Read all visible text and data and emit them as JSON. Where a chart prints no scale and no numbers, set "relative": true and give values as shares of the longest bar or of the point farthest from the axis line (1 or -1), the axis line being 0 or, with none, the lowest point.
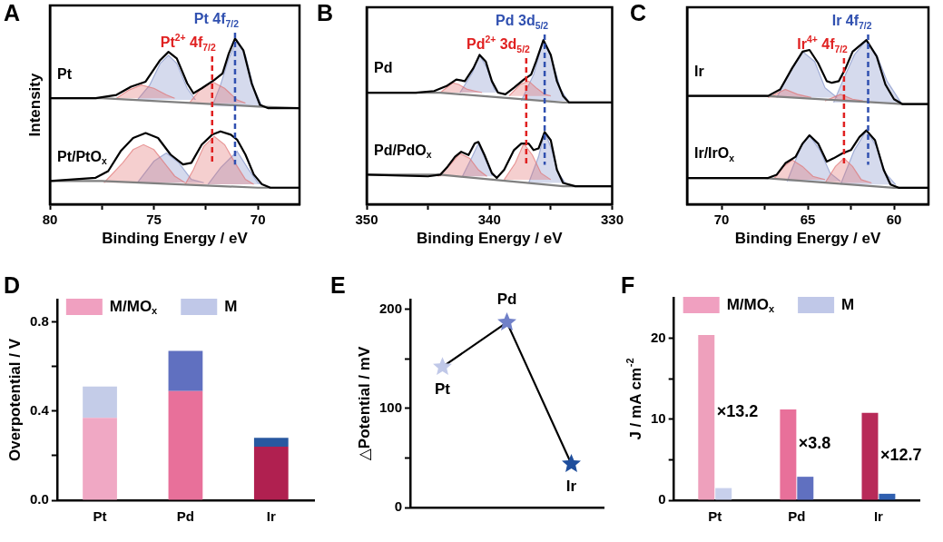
{
  "chart_data": [
    {
      "type": "line",
      "title": "A",
      "xlabel": "Binding Energy / eV",
      "ylabel": "Intensity",
      "relative": true,
      "xlim": [
        80,
        68
      ],
      "xticks": [
        80,
        {
          "value": 77.5,
          "label": null
        },
        75,
        {
          "value": 72.5,
          "label": null
        },
        70
      ],
      "series": [
        {
          "name": "Pt",
          "color": "#000000",
          "x": [
            80,
            77.8,
            76.8,
            76.1,
            75.4,
            74.7,
            74.3,
            73.9,
            73.4,
            73.1,
            72.7,
            72.1,
            71.7,
            71.4,
            71.1,
            70.7,
            70.3,
            69.9,
            69.5,
            68
          ],
          "values": [
            0.64,
            0.64,
            0.66,
            0.71,
            0.74,
            0.87,
            0.92,
            0.88,
            0.73,
            0.67,
            0.7,
            0.75,
            0.79,
            0.91,
            1,
            0.93,
            0.73,
            0.6,
            0.58,
            0.58
          ]
        },
        {
          "name": "Pt/PtO$_{x}$",
          "color": "#000000",
          "x": [
            80,
            77.8,
            77.2,
            76.6,
            76.0,
            75.4,
            74.8,
            74.2,
            73.6,
            73.2,
            72.7,
            72.2,
            71.8,
            71.3,
            71.0,
            70.6,
            70.2,
            69.8,
            69.4,
            68
          ],
          "values": [
            0.14,
            0.16,
            0.2,
            0.32,
            0.4,
            0.43,
            0.4,
            0.3,
            0.24,
            0.25,
            0.36,
            0.42,
            0.44,
            0.42,
            0.39,
            0.3,
            0.18,
            0.12,
            0.1,
            0.1
          ]
        },
        {
          "type": "line",
          "color": "#808080",
          "x": [
            80,
            77.5,
            70,
            68
          ],
          "values": [
            0.64,
            0.64,
            0.59,
            0.58
          ]
        },
        {
          "type": "line",
          "color": "#808080",
          "x": [
            80,
            77.5,
            70,
            68
          ],
          "values": [
            0.14,
            0.14,
            0.1,
            0.1
          ]
        },
        {
          "type": "area",
          "color": "#e07070",
          "x": [
            76.8,
            76.2,
            75.6,
            75.0,
            74.4,
            74.0
          ],
          "values": [
            0.64,
            0.69,
            0.72,
            0.7,
            0.66,
            0.64
          ]
        },
        {
          "type": "area",
          "color": "#e07070",
          "x": [
            73.3,
            72.8,
            72.2,
            71.6,
            71.0,
            70.6
          ],
          "values": [
            0.61,
            0.69,
            0.74,
            0.7,
            0.63,
            0.61
          ]
        },
        {
          "type": "area",
          "color": "#8090c8",
          "x": [
            75.8,
            75.2,
            74.7,
            74.3,
            73.9,
            73.4,
            73.0
          ],
          "values": [
            0.63,
            0.72,
            0.85,
            0.9,
            0.85,
            0.7,
            0.63
          ]
        },
        {
          "type": "area",
          "color": "#8090c8",
          "x": [
            72.2,
            71.8,
            71.4,
            71.0,
            70.6,
            70.2,
            69.8
          ],
          "values": [
            0.59,
            0.72,
            0.88,
            0.99,
            0.9,
            0.7,
            0.59
          ]
        },
        {
          "type": "area",
          "color": "#e07070",
          "x": [
            77.4,
            76.5,
            76.0,
            75.5,
            75.0,
            74.5,
            74.0,
            73.5
          ],
          "values": [
            0.13,
            0.25,
            0.33,
            0.36,
            0.33,
            0.25,
            0.17,
            0.13
          ]
        },
        {
          "type": "area",
          "color": "#e07070",
          "x": [
            73.5,
            73.1,
            72.6,
            72.1,
            71.6,
            71.1,
            70.6,
            70.2
          ],
          "values": [
            0.12,
            0.21,
            0.35,
            0.41,
            0.36,
            0.25,
            0.15,
            0.12
          ]
        },
        {
          "type": "area",
          "color": "#8090c8",
          "x": [
            75.8,
            75.0,
            74.4,
            73.8,
            73.2,
            72.6
          ],
          "values": [
            0.13,
            0.26,
            0.31,
            0.25,
            0.15,
            0.13
          ]
        },
        {
          "type": "area",
          "color": "#8090c8",
          "x": [
            72.4,
            71.8,
            71.0,
            70.5,
            70.0,
            69.8
          ],
          "values": [
            0.12,
            0.22,
            0.32,
            0.22,
            0.13,
            0.12
          ]
        }
      ],
      "ref_lines": [
        {
          "axis": "x",
          "value": 72.2,
          "label": "Pt$^{2+}$ 4f$_{7/2}$",
          "color": "#e02020",
          "line_style": "dashed"
        },
        {
          "axis": "x",
          "value": 71.1,
          "label": "Pt 4f$_{7/2}$",
          "color": "#3050b0",
          "line_style": "dashed"
        }
      ]
    },
    {
      "type": "line",
      "title": "B",
      "xlabel": "Binding Energy / eV",
      "relative": true,
      "xlim": [
        350,
        330
      ],
      "xticks": [
        350,
        {
          "value": 345,
          "label": null
        },
        340,
        {
          "value": 335,
          "label": null
        },
        330
      ],
      "series": [
        {
          "name": "Pd",
          "color": "#000000",
          "x": [
            350,
            346,
            344.5,
            343.5,
            342.7,
            342,
            341.3,
            340.8,
            340.3,
            339.8,
            339.3,
            338.7,
            338,
            337.2,
            336.6,
            336.2,
            335.6,
            335.0,
            334.5,
            334.0,
            333.5,
            330
          ],
          "values": [
            0.68,
            0.68,
            0.69,
            0.72,
            0.76,
            0.75,
            0.83,
            0.91,
            0.87,
            0.75,
            0.68,
            0.67,
            0.71,
            0.76,
            0.79,
            0.87,
            1,
            0.91,
            0.75,
            0.66,
            0.62,
            0.62
          ]
        },
        {
          "name": "Pd/PdO$_{x}$",
          "color": "#000000",
          "x": [
            350,
            345,
            344,
            343.4,
            342.8,
            342.3,
            341.7,
            341.2,
            340.9,
            340.4,
            339.8,
            339.4,
            338.8,
            338.0,
            337.4,
            336.8,
            336.4,
            336.0,
            335.5,
            335.0,
            334.5,
            334.0,
            333.0,
            330
          ],
          "values": [
            0.18,
            0.17,
            0.18,
            0.23,
            0.29,
            0.32,
            0.3,
            0.37,
            0.38,
            0.3,
            0.19,
            0.16,
            0.21,
            0.33,
            0.37,
            0.37,
            0.33,
            0.34,
            0.44,
            0.39,
            0.21,
            0.13,
            0.11,
            0.11
          ]
        },
        {
          "type": "line",
          "color": "#808080",
          "x": [
            350,
            344,
            334,
            330
          ],
          "values": [
            0.68,
            0.68,
            0.62,
            0.62
          ]
        },
        {
          "type": "line",
          "color": "#808080",
          "x": [
            350,
            344,
            334,
            330
          ],
          "values": [
            0.18,
            0.18,
            0.11,
            0.11
          ]
        },
        {
          "type": "area",
          "color": "#e07070",
          "x": [
            344.0,
            343.0,
            342.5,
            341.8,
            341.2,
            340.6
          ],
          "values": [
            0.68,
            0.74,
            0.73,
            0.7,
            0.69,
            0.68
          ]
        },
        {
          "type": "area",
          "color": "#e07070",
          "x": [
            338.4,
            337.5,
            336.8,
            336.2,
            335.5,
            335.0
          ],
          "values": [
            0.66,
            0.73,
            0.75,
            0.71,
            0.67,
            0.66
          ]
        },
        {
          "type": "area",
          "color": "#8090c8",
          "x": [
            342.4,
            341.4,
            340.8,
            340.2,
            339.6,
            339.2
          ],
          "values": [
            0.68,
            0.8,
            0.91,
            0.83,
            0.7,
            0.68
          ]
        },
        {
          "type": "area",
          "color": "#8090c8",
          "x": [
            337.4,
            336.4,
            335.6,
            334.9,
            334.2,
            333.6
          ],
          "values": [
            0.63,
            0.79,
            1,
            0.88,
            0.7,
            0.63
          ]
        },
        {
          "type": "area",
          "color": "#e07070",
          "x": [
            344.2,
            343.2,
            342.4,
            341.6,
            340.9,
            340.2
          ],
          "values": [
            0.17,
            0.24,
            0.31,
            0.28,
            0.21,
            0.17
          ]
        },
        {
          "type": "area",
          "color": "#e07070",
          "x": [
            338.8,
            337.9,
            337.2,
            336.5,
            335.8,
            335.0
          ],
          "values": [
            0.15,
            0.25,
            0.37,
            0.3,
            0.19,
            0.15
          ]
        },
        {
          "type": "area",
          "color": "#8090c8",
          "x": [
            342.2,
            341.4,
            340.9,
            340.3,
            339.8,
            339.4
          ],
          "values": [
            0.17,
            0.29,
            0.37,
            0.27,
            0.18,
            0.17
          ]
        },
        {
          "type": "area",
          "color": "#8090c8",
          "x": [
            336.8,
            336.0,
            335.5,
            335.0,
            334.4,
            333.8
          ],
          "values": [
            0.13,
            0.29,
            0.44,
            0.35,
            0.19,
            0.13
          ]
        }
      ],
      "ref_lines": [
        {
          "axis": "x",
          "value": 337.0,
          "label": "Pd$^{2+}$ 3d$_{5/2}$",
          "color": "#e02020",
          "line_style": "dashed"
        },
        {
          "axis": "x",
          "value": 335.5,
          "label": "Pd 3d$_{5/2}$",
          "color": "#3050b0",
          "line_style": "dashed"
        }
      ]
    },
    {
      "type": "line",
      "title": "C",
      "xlabel": "Binding Energy / eV",
      "relative": true,
      "xlim": [
        72,
        58
      ],
      "xticks": [
        70,
        {
          "value": 67.5,
          "label": null
        },
        65,
        {
          "value": 62.5,
          "label": null
        },
        60
      ],
      "series": [
        {
          "name": "Ir",
          "color": "#000000",
          "x": [
            72,
            67.3,
            66.6,
            65.9,
            65.3,
            64.9,
            64.4,
            63.9,
            63.6,
            63.2,
            62.8,
            62.4,
            61.6,
            61.0,
            60.5,
            60.0,
            59.5,
            58
          ],
          "values": [
            0.66,
            0.66,
            0.7,
            0.83,
            0.93,
            0.94,
            0.86,
            0.75,
            0.74,
            0.75,
            0.83,
            0.93,
            1,
            0.9,
            0.73,
            0.64,
            0.61,
            0.61
          ]
        },
        {
          "name": "Ir/IrO$_{x}$",
          "color": "#000000",
          "x": [
            72,
            67.3,
            66.8,
            66.3,
            65.7,
            65.3,
            64.9,
            64.4,
            63.9,
            63.5,
            63.0,
            62.5,
            62.0,
            61.6,
            61.1,
            60.6,
            60.2,
            59.7,
            58
          ],
          "values": [
            0.16,
            0.16,
            0.18,
            0.25,
            0.29,
            0.37,
            0.42,
            0.37,
            0.26,
            0.28,
            0.31,
            0.33,
            0.41,
            0.45,
            0.39,
            0.21,
            0.12,
            0.1,
            0.1
          ]
        },
        {
          "type": "line",
          "color": "#808080",
          "x": [
            72,
            67.5,
            59.5,
            58
          ],
          "values": [
            0.66,
            0.66,
            0.61,
            0.61
          ]
        },
        {
          "type": "line",
          "color": "#808080",
          "x": [
            72,
            67.5,
            60,
            58
          ],
          "values": [
            0.16,
            0.16,
            0.1,
            0.1
          ]
        },
        {
          "type": "area",
          "color": "#e07070",
          "x": [
            67.3,
            66.3,
            65.6,
            64.8
          ],
          "values": [
            0.65,
            0.7,
            0.67,
            0.65
          ]
        },
        {
          "type": "area",
          "color": "#e07070",
          "x": [
            64.0,
            63.1,
            62.4,
            61.8
          ],
          "values": [
            0.63,
            0.67,
            0.64,
            0.63
          ]
        },
        {
          "type": "area",
          "color": "#8090c8",
          "x": [
            66.8,
            66.0,
            65.3,
            64.6,
            64.0,
            63.3
          ],
          "values": [
            0.65,
            0.81,
            0.93,
            0.87,
            0.71,
            0.65
          ]
        },
        {
          "type": "area",
          "color": "#8090c8",
          "x": [
            63.5,
            62.9,
            62.3,
            61.6,
            61.0,
            60.4,
            59.6
          ],
          "values": [
            0.62,
            0.77,
            0.91,
            1,
            0.91,
            0.75,
            0.62
          ]
        },
        {
          "type": "area",
          "color": "#e07070",
          "x": [
            67.0,
            66.4,
            65.9,
            65.3,
            64.7,
            64.0
          ],
          "values": [
            0.15,
            0.23,
            0.27,
            0.23,
            0.17,
            0.15
          ]
        },
        {
          "type": "area",
          "color": "#e07070",
          "x": [
            64.0,
            63.4,
            62.9,
            62.4,
            61.9,
            61.3
          ],
          "values": [
            0.13,
            0.23,
            0.28,
            0.23,
            0.15,
            0.13
          ]
        },
        {
          "type": "area",
          "color": "#8090c8",
          "x": [
            66.2,
            65.4,
            64.9,
            64.3,
            63.7,
            63.1
          ],
          "values": [
            0.14,
            0.35,
            0.42,
            0.33,
            0.19,
            0.14
          ]
        },
        {
          "type": "area",
          "color": "#8090c8",
          "x": [
            63.1,
            62.3,
            61.6,
            61.0,
            60.5,
            59.9
          ],
          "values": [
            0.12,
            0.33,
            0.45,
            0.35,
            0.19,
            0.12
          ]
        }
      ],
      "ref_lines": [
        {
          "axis": "x",
          "value": 62.9,
          "label": "Ir$^{4+}$ 4f$_{7/2}$",
          "color": "#e02020",
          "line_style": "dashed"
        },
        {
          "axis": "x",
          "value": 61.5,
          "label": "Ir 4f$_{7/2}$",
          "color": "#3050b0",
          "line_style": "dashed"
        }
      ]
    },
    {
      "type": "bar",
      "title": "D",
      "ylabel": "Overpotential / V",
      "categories": [
        "Pt",
        "Pd",
        "Ir"
      ],
      "stacked": true,
      "legend": "top left",
      "ylim": [
        0,
        0.9
      ],
      "yticks": [
        {
          "value": 0,
          "label": "0.0"
        },
        {
          "value": 0.2,
          "label": null
        },
        {
          "value": 0.4,
          "label": "0.4"
        },
        {
          "value": 0.6,
          "label": null
        },
        {
          "value": 0.8,
          "label": "0.8"
        }
      ],
      "series": [
        {
          "name": "M/MO$_{x}$",
          "color": "#f0a0c0",
          "colors": [
            "#f0a8c4",
            "#e8709a",
            "#b02050"
          ],
          "values": [
            0.37,
            0.49,
            0.24
          ]
        },
        {
          "name": "M",
          "color": "#c0c8e8",
          "colors": [
            "#c4cce8",
            "#6070c0",
            "#2858a0"
          ],
          "values": [
            0.14,
            0.18,
            0.04
          ]
        }
      ]
    },
    {
      "type": "line",
      "title": "E",
      "ylabel": "△Potential / mV",
      "categories": [
        "Pt",
        "Pd",
        "Ir"
      ],
      "tick_labels": "y",
      "marker": "star",
      "ylim": [
        0,
        210
      ],
      "yticks": [
        0,
        {
          "value": 50,
          "label": null
        },
        100,
        {
          "value": 150,
          "label": null
        },
        200
      ],
      "series": [
        {
          "color": "#000000",
          "colors": [
            "#c0c8e8",
            "#7080c8",
            "#1f4e9c"
          ],
          "values": [
            142,
            187,
            44
          ]
        }
      ]
    },
    {
      "type": "bar",
      "title": "F",
      "ylabel": "J / mA cm$^{-2}$",
      "categories": [
        "Pt",
        "Pd",
        "Ir"
      ],
      "legend": "top left",
      "ylim": [
        0,
        25
      ],
      "yticks": [
        0,
        {
          "value": 5,
          "label": null
        },
        10,
        {
          "value": 15,
          "label": null
        },
        20
      ],
      "series": [
        {
          "name": "M/MO$_{x}$",
          "color": "#f0a0c0",
          "colors": [
            "#eea0bc",
            "#e8709a",
            "#b82a58"
          ],
          "values": [
            20.4,
            11.2,
            10.8
          ]
        },
        {
          "name": "M",
          "color": "#c0c8e8",
          "colors": [
            "#c8d0ec",
            "#6070c0",
            "#3060b0"
          ],
          "values": [
            1.5,
            2.9,
            0.8
          ]
        }
      ],
      "annotations": [
        {
          "text": "×13.2",
          "x": "Pt",
          "y": 10.9
        },
        {
          "text": "×3.8",
          "x": "Pd",
          "y": 6.9
        },
        {
          "text": "×12.7",
          "x": "Ir",
          "y": 5.5
        }
      ]
    }
  ]
}
